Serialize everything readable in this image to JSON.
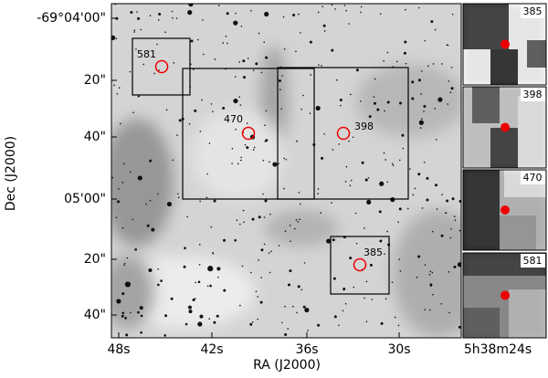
{
  "axes": {
    "x_label": "RA (J2000)",
    "y_label": "Dec (J2000)",
    "x_ticks": [
      "48s",
      "42s",
      "36s",
      "30s",
      "5h38m24s"
    ],
    "y_ticks": [
      "-69°04'00\"",
      "20\"",
      "40\"",
      "05'00\"",
      "20\"",
      "40\""
    ]
  },
  "sources": [
    {
      "label": "581"
    },
    {
      "label": "470"
    },
    {
      "label": "398"
    },
    {
      "label": "385"
    }
  ],
  "insets": [
    {
      "label": "385"
    },
    {
      "label": "398"
    },
    {
      "label": "470"
    },
    {
      "label": "581"
    }
  ]
}
